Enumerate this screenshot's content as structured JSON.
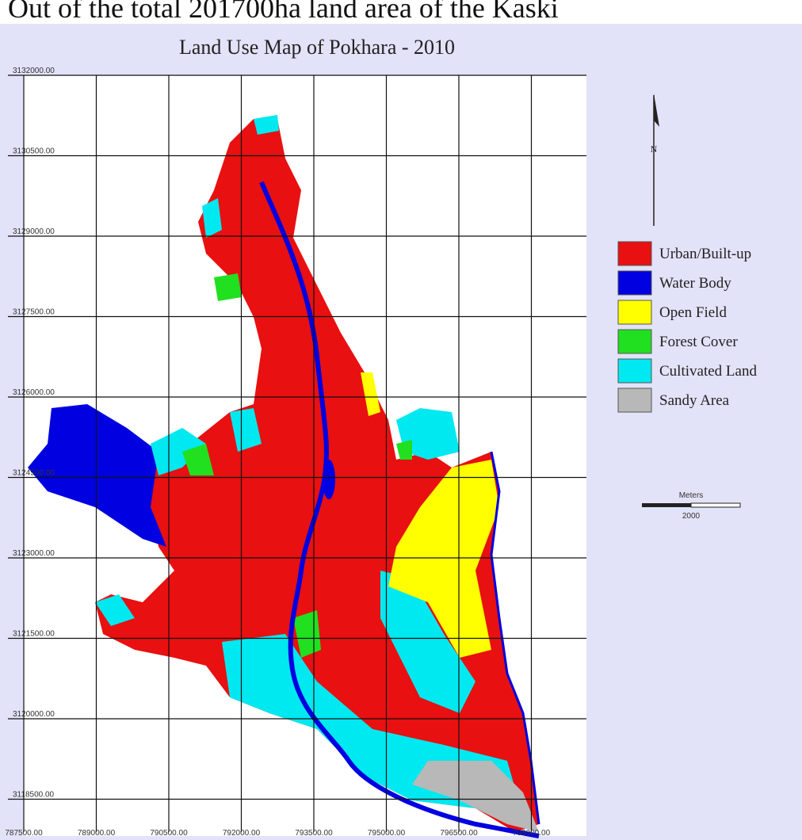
{
  "caption": "Out of the total 201700ha land area of the Kaski",
  "map": {
    "title": "Land Use Map of Pokhara - 2010",
    "y_labels": [
      "3132000.00",
      "3130500.00",
      "3129000.00",
      "3127500.00",
      "3126000.00",
      "3124500.00",
      "3123000.00",
      "3121500.00",
      "3120000.00",
      "3118500.00"
    ],
    "x_labels": [
      "787500.00",
      "789000.00",
      "790500.00",
      "792000.00",
      "793500.00",
      "795000.00",
      "796500.00",
      "798000.00"
    ],
    "legend": [
      {
        "label": "Urban/Built-up",
        "color": "#e81010"
      },
      {
        "label": "Water Body",
        "color": "#0000e0"
      },
      {
        "label": "Open Field",
        "color": "#ffff00"
      },
      {
        "label": "Forest Cover",
        "color": "#20e020"
      },
      {
        "label": "Cultivated Land",
        "color": "#00e8f0"
      },
      {
        "label": "Sandy Area",
        "color": "#b8b8b8"
      }
    ],
    "north": "N",
    "scale": {
      "unit": "Meters",
      "length": "2000"
    }
  }
}
